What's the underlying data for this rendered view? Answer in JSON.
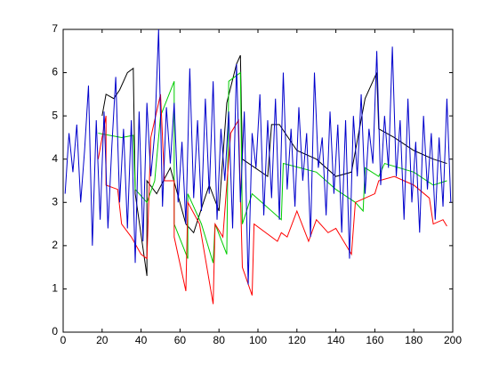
{
  "chart_data": {
    "type": "line",
    "xlim": [
      0,
      200
    ],
    "ylim": [
      0,
      7
    ],
    "xticks": [
      0,
      20,
      40,
      60,
      80,
      100,
      120,
      140,
      160,
      180,
      200
    ],
    "yticks": [
      0,
      1,
      2,
      3,
      4,
      5,
      6,
      7
    ],
    "series": [
      {
        "color": "#000000",
        "x": [
          20,
          22,
          26,
          29,
          33,
          36,
          37,
          43,
          43,
          48,
          55,
          63,
          67,
          72,
          75,
          80,
          84,
          89,
          91,
          92,
          105,
          107,
          111,
          120,
          130,
          140,
          148,
          155,
          161,
          162,
          170,
          180,
          190,
          197
        ],
        "values": [
          5.0,
          5.5,
          5.4,
          5.6,
          6.0,
          6.1,
          3.2,
          1.3,
          3.5,
          3.2,
          3.8,
          2.5,
          2.3,
          3.0,
          3.4,
          2.8,
          5.3,
          6.2,
          6.4,
          4.0,
          3.6,
          4.8,
          4.8,
          4.2,
          4.0,
          3.6,
          3.7,
          5.4,
          6.0,
          4.7,
          4.5,
          4.2,
          4.0,
          3.9
        ]
      },
      {
        "color": "#00cc00",
        "x": [
          18,
          30,
          36,
          37,
          43,
          47,
          50,
          57,
          57,
          64,
          64,
          71,
          77,
          78,
          84,
          85,
          91,
          92,
          97,
          112,
          113,
          130,
          140,
          150,
          154,
          155,
          162,
          165,
          180,
          190,
          197
        ],
        "values": [
          4.6,
          4.5,
          4.55,
          3.3,
          3.0,
          3.5,
          5.0,
          5.8,
          2.5,
          1.7,
          3.2,
          2.5,
          1.6,
          2.5,
          1.8,
          5.8,
          6.0,
          2.5,
          3.2,
          2.6,
          3.9,
          3.7,
          3.3,
          3.0,
          2.8,
          3.8,
          3.6,
          3.9,
          3.7,
          3.4,
          3.5
        ]
      },
      {
        "color": "#ff0000",
        "x": [
          18,
          22,
          22,
          28,
          30,
          35,
          40,
          43,
          45,
          50,
          52,
          57,
          57,
          63,
          64,
          70,
          77,
          78,
          82,
          86,
          90,
          92,
          97,
          98,
          110,
          112,
          115,
          120,
          126,
          130,
          136,
          140,
          148,
          150,
          160,
          162,
          170,
          180,
          188,
          190,
          195,
          197
        ],
        "values": [
          4.0,
          5.0,
          3.4,
          3.3,
          2.5,
          2.2,
          1.8,
          1.7,
          4.5,
          5.5,
          3.5,
          3.5,
          2.2,
          0.95,
          3.0,
          2.5,
          0.65,
          2.5,
          2.2,
          4.6,
          4.9,
          1.5,
          0.85,
          2.5,
          2.1,
          2.3,
          2.2,
          2.8,
          2.1,
          2.6,
          2.3,
          2.4,
          1.8,
          3.0,
          3.2,
          3.5,
          3.6,
          3.4,
          3.1,
          2.5,
          2.6,
          2.45
        ]
      },
      {
        "color": "#0000cc",
        "x": [
          1,
          3,
          5,
          7,
          9,
          11,
          13,
          15,
          17,
          19,
          21,
          23,
          25,
          27,
          29,
          31,
          33,
          35,
          37,
          39,
          41,
          43,
          45,
          47,
          49,
          51,
          53,
          55,
          57,
          59,
          61,
          63,
          65,
          67,
          69,
          71,
          73,
          75,
          77,
          79,
          81,
          83,
          85,
          87,
          89,
          91,
          93,
          95,
          97,
          99,
          101,
          103,
          105,
          107,
          109,
          111,
          113,
          115,
          117,
          119,
          121,
          123,
          125,
          127,
          129,
          131,
          133,
          135,
          137,
          139,
          141,
          143,
          145,
          147,
          149,
          151,
          153,
          155,
          157,
          159,
          161,
          163,
          165,
          167,
          169,
          171,
          173,
          175,
          177,
          179,
          181,
          183,
          185,
          187,
          189,
          191,
          193,
          195,
          197,
          199
        ],
        "values": [
          3.2,
          4.6,
          3.7,
          4.8,
          3.0,
          4.2,
          5.7,
          2.0,
          4.9,
          2.6,
          5.1,
          2.4,
          4.3,
          5.9,
          3.0,
          4.7,
          2.4,
          4.9,
          1.6,
          5.1,
          2.1,
          5.3,
          3.6,
          4.6,
          7.0,
          2.9,
          5.2,
          3.9,
          5.3,
          3.0,
          4.4,
          2.5,
          6.1,
          3.1,
          4.9,
          2.8,
          5.4,
          3.2,
          5.8,
          2.6,
          4.7,
          3.5,
          5.1,
          2.4,
          6.2,
          3.0,
          5.1,
          1.1,
          4.6,
          3.8,
          5.5,
          2.7,
          4.9,
          3.1,
          5.4,
          2.6,
          6.0,
          3.3,
          4.7,
          2.9,
          5.2,
          3.5,
          4.6,
          2.2,
          6.0,
          3.8,
          4.5,
          2.7,
          5.1,
          3.2,
          4.8,
          2.3,
          4.9,
          1.7,
          5.0,
          3.6,
          5.5,
          3.2,
          4.7,
          3.9,
          6.5,
          3.4,
          5.0,
          3.8,
          6.6,
          3.6,
          4.9,
          2.6,
          5.4,
          3.0,
          4.4,
          2.3,
          5.0,
          3.3,
          4.6,
          2.6,
          4.5,
          2.9,
          5.4,
          3.0
        ]
      }
    ]
  }
}
